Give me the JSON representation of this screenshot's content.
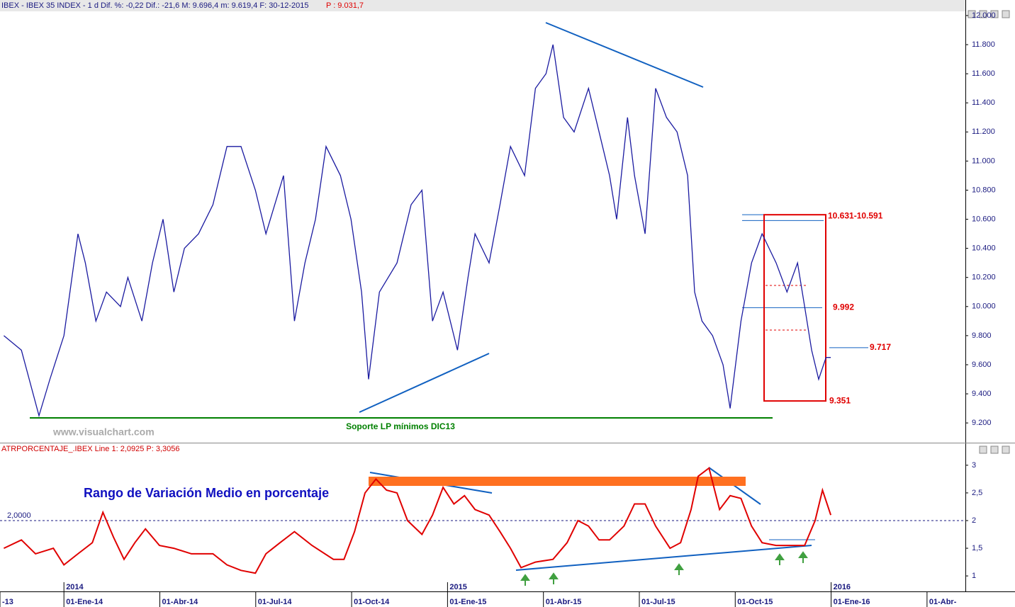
{
  "chart_data": [
    {
      "type": "line",
      "header": "IBEX - IBEX 35 INDEX - 1 d Dif. %: -0,22 Dif.: -21,6 M: 9.696,4 m: 9.619,4 F: 30-12-2015",
      "header_extra": "P : 9.031,7",
      "watermark": "www.visualchart.com",
      "support_label": "Soporte LP mínimos DIC13",
      "series": [
        {
          "name": "IBEX",
          "color": "#1a1aa0",
          "x": [
            -1.88,
            -1.33,
            -0.78,
            -0.44,
            0,
            0.44,
            0.67,
            1.0,
            1.33,
            1.77,
            2.0,
            2.44,
            2.77,
            3.1,
            3.44,
            3.77,
            4.21,
            4.66,
            5.1,
            5.54,
            5.99,
            6.32,
            6.87,
            7.21,
            7.54,
            7.87,
            8.2,
            8.65,
            8.98,
            9.31,
            9.53,
            9.87,
            10.42,
            10.86,
            11.2,
            11.53,
            11.86,
            12.31,
            12.64,
            12.86,
            13.3,
            13.64,
            13.97,
            14.41,
            14.75,
            15.08,
            15.3,
            15.63,
            15.96,
            16.41,
            16.74,
            17.07,
            17.29,
            17.63,
            17.85,
            18.18,
            18.51,
            18.85,
            19.18,
            19.51,
            19.73,
            19.96,
            20.29,
            20.62,
            20.84,
            21.18,
            21.51,
            21.84,
            22.06,
            22.28,
            22.62,
            22.95,
            23.17,
            23.39,
            23.61,
            23.84,
            23.99
          ],
          "values": [
            9800,
            9700,
            9250,
            9500,
            9800,
            10500,
            10300,
            9900,
            10100,
            10000,
            10200,
            9900,
            10300,
            10600,
            10100,
            10400,
            10500,
            10700,
            11100,
            11100,
            10800,
            10500,
            10900,
            9900,
            10300,
            10600,
            11100,
            10900,
            10600,
            10100,
            9500,
            10100,
            10300,
            10700,
            10800,
            9900,
            10100,
            9700,
            10200,
            10500,
            10300,
            10700,
            11100,
            10900,
            11500,
            11600,
            11800,
            11300,
            11200,
            11500,
            11200,
            10900,
            10600,
            11300,
            10900,
            10500,
            11500,
            11300,
            11200,
            10900,
            10100,
            9900,
            9800,
            9600,
            9300,
            9900,
            10300,
            10500,
            10400,
            10300,
            10100,
            10300,
            10000,
            9700,
            9500,
            9650,
            9650
          ]
        }
      ],
      "levels": [
        {
          "label": "10.631-10.591",
          "values": [
            10631,
            10591
          ]
        },
        {
          "label": "9.992",
          "values": [
            9992
          ]
        },
        {
          "label": "9.717",
          "values": [
            9717
          ]
        },
        {
          "label": "9.351",
          "values": [
            9351
          ]
        }
      ],
      "xlim": [
        -2.0,
        28.2
      ],
      "ylim": [
        9113,
        12029
      ],
      "yticks": [
        {
          "value": 9200,
          "label": "9.200"
        },
        {
          "value": 9400,
          "label": "9.400"
        },
        {
          "value": 9600,
          "label": "9.600"
        },
        {
          "value": 9800,
          "label": "9.800"
        },
        {
          "value": 10000,
          "label": "10.000"
        },
        {
          "value": 10200,
          "label": "10.200"
        },
        {
          "value": 10400,
          "label": "10.400"
        },
        {
          "value": 10600,
          "label": "10.600"
        },
        {
          "value": 10800,
          "label": "10.800"
        },
        {
          "value": 11000,
          "label": "11.000"
        },
        {
          "value": 11200,
          "label": "11.200"
        },
        {
          "value": 11400,
          "label": "11.400"
        },
        {
          "value": 11600,
          "label": "11.600"
        },
        {
          "value": 11800,
          "label": "11.800"
        },
        {
          "value": 12000,
          "label": "12.000"
        }
      ]
    },
    {
      "type": "line",
      "header": "ATRPORCENTAJE_.IBEX Line 1: 2,0925 P: 3,3056",
      "title": "Rango de Variación Medio en porcentaje",
      "reference": {
        "value": 2,
        "label": "2,0000"
      },
      "series": [
        {
          "name": "ATR %",
          "color": "#e00000",
          "x": [
            -1.88,
            -1.33,
            -0.89,
            -0.33,
            0,
            0.44,
            0.89,
            1.22,
            1.55,
            1.88,
            2.22,
            2.55,
            2.99,
            3.44,
            3.99,
            4.66,
            5.1,
            5.54,
            5.99,
            6.32,
            6.76,
            7.21,
            7.76,
            8.43,
            8.76,
            9.09,
            9.42,
            9.76,
            10.09,
            10.42,
            10.75,
            11.2,
            11.53,
            11.86,
            12.2,
            12.53,
            12.86,
            13.3,
            13.64,
            13.97,
            14.3,
            14.75,
            15.3,
            15.74,
            16.08,
            16.41,
            16.74,
            17.07,
            17.52,
            17.85,
            18.18,
            18.51,
            18.96,
            19.29,
            19.62,
            19.84,
            20.18,
            20.51,
            20.84,
            21.18,
            21.51,
            21.84,
            22.28,
            22.73,
            23.17,
            23.5,
            23.73,
            23.99
          ],
          "values": [
            1.5,
            1.65,
            1.4,
            1.5,
            1.2,
            1.4,
            1.6,
            2.15,
            1.7,
            1.3,
            1.6,
            1.85,
            1.55,
            1.5,
            1.4,
            1.4,
            1.2,
            1.1,
            1.05,
            1.4,
            1.6,
            1.8,
            1.55,
            1.3,
            1.3,
            1.8,
            2.5,
            2.75,
            2.55,
            2.5,
            2.0,
            1.75,
            2.1,
            2.6,
            2.3,
            2.45,
            2.2,
            2.1,
            1.8,
            1.5,
            1.15,
            1.25,
            1.3,
            1.6,
            2.0,
            1.9,
            1.65,
            1.65,
            1.9,
            2.3,
            2.3,
            1.9,
            1.5,
            1.6,
            2.2,
            2.8,
            2.95,
            2.2,
            2.45,
            2.4,
            1.9,
            1.6,
            1.55,
            1.55,
            1.55,
            2.0,
            2.55,
            2.1
          ]
        }
      ],
      "xlim": [
        -2.0,
        28.2
      ],
      "ylim": [
        0.72,
        3.19
      ],
      "yticks": [
        1,
        {
          "value": 1.5,
          "label": "1,5"
        },
        2,
        {
          "value": 2.5,
          "label": "2,5"
        },
        3
      ],
      "xticks": [
        {
          "value": -2,
          "label": "-13"
        },
        {
          "value": 0,
          "label": "01-Ene-14"
        },
        {
          "value": 3,
          "label": "01-Abr-14"
        },
        {
          "value": 6,
          "label": "01-Jul-14"
        },
        {
          "value": 9,
          "label": "01-Oct-14"
        },
        {
          "value": 12,
          "label": "01-Ene-15"
        },
        {
          "value": 15,
          "label": "01-Abr-15"
        },
        {
          "value": 18,
          "label": "01-Jul-15"
        },
        {
          "value": 21,
          "label": "01-Oct-15"
        },
        {
          "value": 24,
          "label": "01-Ene-16"
        },
        {
          "value": 27,
          "label": "01-Abr-"
        }
      ],
      "year_ticks": [
        {
          "value": 0,
          "label": "2014"
        },
        {
          "value": 12,
          "label": "2015"
        },
        {
          "value": 24,
          "label": "2016"
        }
      ]
    }
  ]
}
